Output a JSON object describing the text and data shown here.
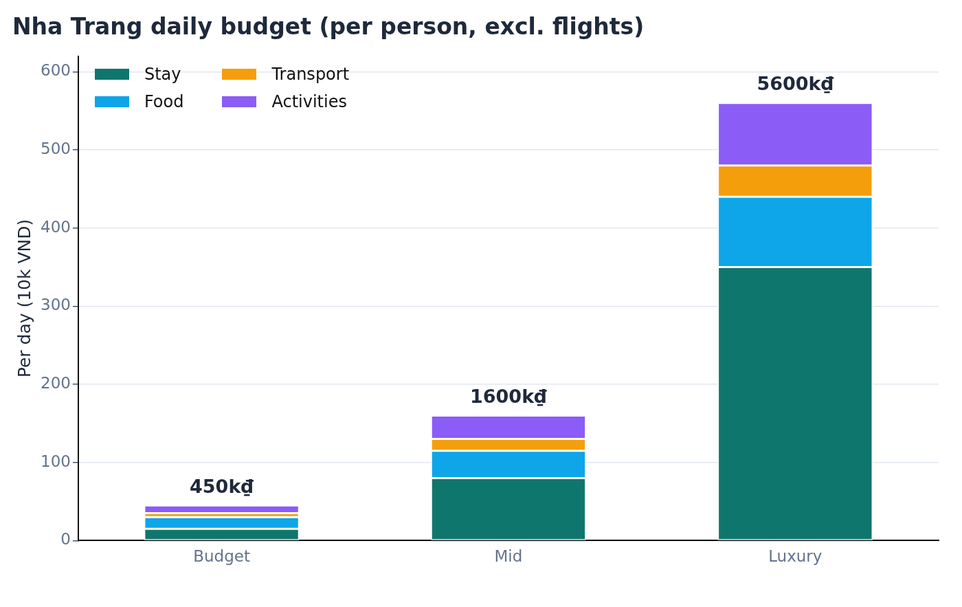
{
  "chart_data": {
    "type": "bar",
    "title": "Nha Trang daily budget (per person, excl. flights)",
    "ylabel": "Per day (10k VND)",
    "categories": [
      "Budget",
      "Mid",
      "Luxury"
    ],
    "series": [
      {
        "name": "Stay",
        "color": "#0f766e",
        "values": [
          15,
          80,
          350
        ]
      },
      {
        "name": "Food",
        "color": "#0ea5e9",
        "values": [
          15,
          35,
          90
        ]
      },
      {
        "name": "Transport",
        "color": "#f59e0b",
        "values": [
          5,
          15,
          40
        ]
      },
      {
        "name": "Activities",
        "color": "#8b5cf6",
        "values": [
          10,
          30,
          80
        ]
      }
    ],
    "stacked": true,
    "annotations": [
      {
        "text": "450k₫",
        "x": "Budget",
        "y": 45
      },
      {
        "text": "1600k₫",
        "x": "Mid",
        "y": 160
      },
      {
        "text": "5600k₫",
        "x": "Luxury",
        "y": 560
      }
    ],
    "ylim": [
      0,
      620
    ],
    "yticks": [
      0,
      100,
      200,
      300,
      400,
      500,
      600
    ],
    "grid": "y",
    "legend": "top left"
  }
}
